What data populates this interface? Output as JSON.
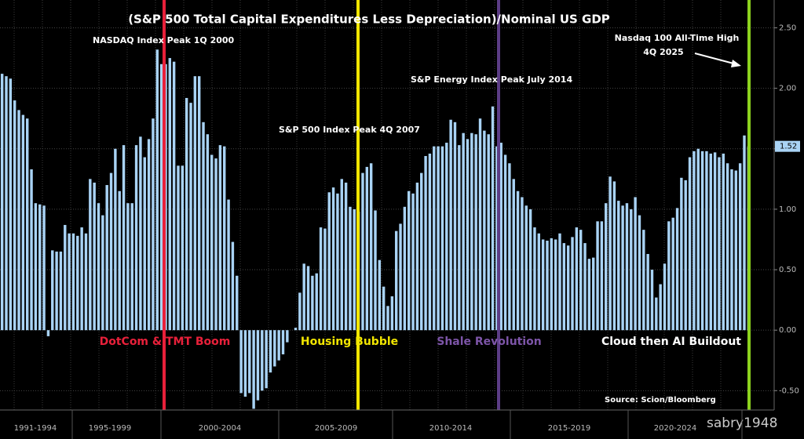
{
  "chart_data": {
    "type": "bar",
    "title": "(S&P 500 Total Capital Expenditures Less Depreciation)/Nominal US GDP",
    "color": "#a9d3f5",
    "ylim": [
      -0.66,
      2.73
    ],
    "yticks": [
      {
        "value": -0.5,
        "label": "-0.50"
      },
      {
        "value": 0,
        "label": "0.00"
      },
      {
        "value": 0.5,
        "label": "0.50"
      },
      {
        "value": 1,
        "label": "1.00"
      },
      {
        "value": 1.5,
        "label": "1.50"
      },
      {
        "value": 2,
        "label": "2.00"
      },
      {
        "value": 2.5,
        "label": "2.50"
      }
    ],
    "grid": true,
    "x_group_labels": [
      "1991-1994",
      "1995-1999",
      "2000-2004",
      "2005-2009",
      "2010-2014",
      "2015-2019",
      "2020-2024"
    ],
    "annotations": [
      "NASDAQ Index Peak 1Q 2000",
      "S&P 500 Index Peak 4Q 2007",
      "S&P Energy Index Peak July 2014",
      "Nasdaq 100 All-Time High",
      "4Q 2025"
    ],
    "eras": [
      {
        "label": "DotCom & TMT Boom",
        "color": "#e8203a"
      },
      {
        "label": "Housing Bubble",
        "color": "#f2e600"
      },
      {
        "label": "Shale Revolution",
        "color": "#7d55a8"
      },
      {
        "label": "Cloud then AI Buildout",
        "color": "#ffffff"
      }
    ],
    "source": "Source: Scion/Bloomberg",
    "watermark": "sabry1948",
    "categories": [
      null,
      null,
      null,
      null,
      null,
      null,
      null,
      null,
      null,
      null,
      null,
      null,
      null,
      null,
      null,
      null,
      null,
      null,
      null,
      null,
      null,
      null,
      null,
      null,
      null,
      null,
      null,
      null,
      null,
      null,
      null,
      null,
      null,
      null,
      null,
      null,
      null,
      null,
      null,
      null,
      null,
      null,
      null,
      null,
      null,
      null,
      null,
      null,
      null,
      null,
      null,
      null,
      null,
      null,
      null,
      null,
      null,
      null,
      null,
      null,
      null,
      null,
      null,
      null,
      null,
      null,
      null,
      null,
      null,
      null,
      null,
      null,
      null,
      null,
      null,
      null,
      null,
      null,
      null,
      null,
      null,
      null,
      null,
      null,
      null,
      null,
      null,
      null,
      null,
      null,
      null,
      null,
      null,
      null,
      null,
      null,
      null,
      null,
      null,
      null,
      null,
      null,
      null,
      null,
      null,
      null,
      null,
      null,
      null,
      null,
      null,
      null,
      null,
      null,
      null,
      null,
      null,
      null,
      null,
      null,
      null,
      null,
      null,
      null,
      null,
      null,
      null,
      null,
      null,
      null,
      null,
      null,
      null,
      null,
      null,
      null,
      null,
      null,
      null,
      null,
      null,
      null,
      null,
      null,
      null,
      null,
      null,
      null,
      null,
      null,
      null,
      null,
      null,
      null,
      null,
      null,
      null,
      null,
      null,
      null,
      null,
      null,
      null,
      null,
      null,
      null,
      null,
      null,
      null,
      null,
      null,
      null,
      null,
      null,
      null,
      null,
      null,
      null,
      null
    ],
    "values": [
      2.12,
      2.1,
      2.08,
      1.9,
      1.82,
      1.78,
      1.75,
      1.33,
      1.05,
      1.04,
      1.03,
      -0.05,
      0.66,
      0.65,
      0.65,
      0.87,
      0.8,
      0.8,
      0.78,
      0.85,
      0.8,
      1.25,
      1.22,
      1.05,
      0.95,
      1.2,
      1.3,
      1.5,
      1.15,
      1.53,
      1.05,
      1.05,
      1.53,
      1.6,
      1.43,
      1.58,
      1.75,
      2.32,
      2.2,
      2.2,
      2.25,
      2.22,
      1.36,
      1.36,
      1.92,
      1.88,
      2.1,
      2.1,
      1.72,
      1.62,
      1.45,
      1.42,
      1.53,
      1.52,
      1.08,
      0.73,
      0.45,
      -0.52,
      -0.55,
      -0.52,
      -0.65,
      -0.58,
      -0.5,
      -0.48,
      -0.35,
      -0.3,
      -0.25,
      -0.2,
      -0.1,
      0.0,
      0.02,
      0.31,
      0.55,
      0.53,
      0.45,
      0.47,
      0.85,
      0.84,
      1.14,
      1.18,
      1.13,
      1.25,
      1.22,
      1.02,
      1.0,
      0.98,
      1.3,
      1.35,
      1.38,
      0.99,
      0.58,
      0.36,
      0.2,
      0.28,
      0.82,
      0.88,
      1.02,
      1.15,
      1.13,
      1.22,
      1.3,
      1.44,
      1.46,
      1.52,
      1.52,
      1.52,
      1.55,
      1.74,
      1.72,
      1.53,
      1.63,
      1.58,
      1.63,
      1.62,
      1.75,
      1.65,
      1.62,
      1.85,
      1.52,
      1.55,
      1.45,
      1.38,
      1.25,
      1.15,
      1.1,
      1.03,
      1.0,
      0.85,
      0.8,
      0.75,
      0.74,
      0.76,
      0.75,
      0.8,
      0.72,
      0.7,
      0.77,
      0.85,
      0.83,
      0.72,
      0.59,
      0.6,
      0.9,
      0.9,
      1.05,
      1.27,
      1.23,
      1.07,
      1.03,
      1.05,
      1.0,
      1.1,
      0.95,
      0.83,
      0.63,
      0.5,
      0.27,
      0.38,
      0.55,
      0.9,
      0.93,
      1.01,
      1.26,
      1.24,
      1.43,
      1.48,
      1.5,
      1.48,
      1.48,
      1.46,
      1.47,
      1.43,
      1.46,
      1.38,
      1.33,
      1.32,
      1.38,
      1.61,
      1.52
    ]
  }
}
